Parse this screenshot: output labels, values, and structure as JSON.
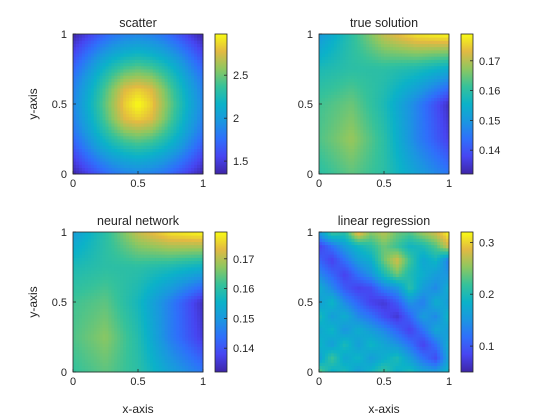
{
  "figure": {
    "background": "#ffffff",
    "colormap": "parula"
  },
  "chart_data": [
    {
      "type": "heatmap",
      "title": "scatter",
      "xlabel": "",
      "ylabel": "y-axis",
      "xlim": [
        0,
        1
      ],
      "ylim": [
        0,
        1
      ],
      "xticks": [
        "0",
        "0.5",
        "1"
      ],
      "yticks": [
        "0",
        "0.5",
        "1"
      ],
      "colorbar": {
        "min": 1.35,
        "max": 2.98,
        "ticks": [
          "1.5",
          "2",
          "2.5"
        ]
      },
      "grid_x": [
        0,
        0.1,
        0.2,
        0.3,
        0.4,
        0.5,
        0.6,
        0.7,
        0.8,
        0.9,
        1
      ],
      "grid_y": [
        0,
        0.1,
        0.2,
        0.3,
        0.4,
        0.5,
        0.6,
        0.7,
        0.8,
        0.9,
        1
      ],
      "values": [
        [
          1.35,
          1.5,
          1.65,
          1.78,
          1.85,
          1.88,
          1.85,
          1.78,
          1.65,
          1.5,
          1.35
        ],
        [
          1.5,
          1.68,
          1.85,
          1.98,
          2.06,
          2.1,
          2.06,
          1.98,
          1.85,
          1.68,
          1.5
        ],
        [
          1.65,
          1.85,
          2.05,
          2.2,
          2.3,
          2.35,
          2.3,
          2.2,
          2.05,
          1.85,
          1.65
        ],
        [
          1.78,
          1.98,
          2.2,
          2.4,
          2.55,
          2.6,
          2.55,
          2.4,
          2.2,
          1.98,
          1.78
        ],
        [
          1.85,
          2.06,
          2.3,
          2.55,
          2.78,
          2.85,
          2.78,
          2.55,
          2.3,
          2.06,
          1.85
        ],
        [
          1.88,
          2.1,
          2.35,
          2.6,
          2.85,
          2.98,
          2.85,
          2.6,
          2.35,
          2.1,
          1.88
        ],
        [
          1.85,
          2.06,
          2.3,
          2.55,
          2.78,
          2.85,
          2.78,
          2.55,
          2.3,
          2.06,
          1.85
        ],
        [
          1.78,
          1.98,
          2.2,
          2.4,
          2.55,
          2.6,
          2.55,
          2.4,
          2.2,
          1.98,
          1.78
        ],
        [
          1.65,
          1.85,
          2.05,
          2.2,
          2.3,
          2.35,
          2.3,
          2.2,
          2.05,
          1.85,
          1.65
        ],
        [
          1.5,
          1.68,
          1.85,
          1.98,
          2.06,
          2.1,
          2.06,
          1.98,
          1.85,
          1.68,
          1.5
        ],
        [
          1.35,
          1.5,
          1.65,
          1.78,
          1.85,
          1.88,
          1.85,
          1.78,
          1.65,
          1.5,
          1.35
        ]
      ]
    },
    {
      "type": "heatmap",
      "title": "true solution",
      "xlabel": "",
      "ylabel": "",
      "xlim": [
        0,
        1
      ],
      "ylim": [
        0,
        1
      ],
      "xticks": [
        "0",
        "0.5",
        "1"
      ],
      "yticks": [
        "0",
        "0.5",
        "1"
      ],
      "colorbar": {
        "min": 0.132,
        "max": 0.179,
        "ticks": [
          "0.14",
          "0.15",
          "0.16",
          "0.17"
        ]
      },
      "grid_x": [
        0,
        0.25,
        0.5,
        0.75,
        1
      ],
      "grid_y": [
        0,
        0.25,
        0.5,
        0.75,
        1
      ],
      "values": [
        [
          0.16,
          0.164,
          0.16,
          0.152,
          0.145
        ],
        [
          0.163,
          0.168,
          0.16,
          0.147,
          0.137
        ],
        [
          0.162,
          0.165,
          0.158,
          0.147,
          0.134
        ],
        [
          0.158,
          0.16,
          0.16,
          0.158,
          0.154
        ],
        [
          0.15,
          0.16,
          0.171,
          0.177,
          0.179
        ]
      ]
    },
    {
      "type": "heatmap",
      "title": "neural network",
      "xlabel": "x-axis",
      "ylabel": "y-axis",
      "xlim": [
        0,
        1
      ],
      "ylim": [
        0,
        1
      ],
      "xticks": [
        "0",
        "0.5",
        "1"
      ],
      "yticks": [
        "0",
        "0.5",
        "1"
      ],
      "colorbar": {
        "min": 0.132,
        "max": 0.179,
        "ticks": [
          "0.14",
          "0.15",
          "0.16",
          "0.17"
        ]
      },
      "grid_x": [
        0,
        0.25,
        0.5,
        0.75,
        1
      ],
      "grid_y": [
        0,
        0.25,
        0.5,
        0.75,
        1
      ],
      "values": [
        [
          0.161,
          0.164,
          0.16,
          0.152,
          0.145
        ],
        [
          0.163,
          0.167,
          0.159,
          0.146,
          0.136
        ],
        [
          0.162,
          0.164,
          0.157,
          0.146,
          0.134
        ],
        [
          0.158,
          0.16,
          0.16,
          0.158,
          0.155
        ],
        [
          0.151,
          0.16,
          0.171,
          0.177,
          0.179
        ]
      ]
    },
    {
      "type": "heatmap",
      "title": "linear regression",
      "xlabel": "x-axis",
      "ylabel": "",
      "xlim": [
        0,
        1
      ],
      "ylim": [
        0,
        1
      ],
      "xticks": [
        "0",
        "0.5",
        "1"
      ],
      "yticks": [
        "0",
        "0.5",
        "1"
      ],
      "colorbar": {
        "min": 0.05,
        "max": 0.32,
        "ticks": [
          "0.1",
          "0.2",
          "0.3"
        ]
      },
      "grid_x": [
        0,
        0.1,
        0.2,
        0.3,
        0.4,
        0.5,
        0.6,
        0.7,
        0.8,
        0.9,
        1
      ],
      "grid_y": [
        0,
        0.1,
        0.2,
        0.3,
        0.4,
        0.5,
        0.6,
        0.7,
        0.8,
        0.9,
        1
      ],
      "values": [
        [
          0.24,
          0.18,
          0.2,
          0.16,
          0.19,
          0.22,
          0.18,
          0.2,
          0.17,
          0.16,
          0.19
        ],
        [
          0.16,
          0.22,
          0.17,
          0.19,
          0.16,
          0.18,
          0.2,
          0.16,
          0.12,
          0.09,
          0.17
        ],
        [
          0.19,
          0.16,
          0.2,
          0.16,
          0.19,
          0.17,
          0.15,
          0.12,
          0.08,
          0.12,
          0.18
        ],
        [
          0.17,
          0.19,
          0.15,
          0.18,
          0.16,
          0.14,
          0.11,
          0.08,
          0.12,
          0.17,
          0.16
        ],
        [
          0.2,
          0.16,
          0.18,
          0.14,
          0.12,
          0.09,
          0.07,
          0.11,
          0.16,
          0.14,
          0.19
        ],
        [
          0.16,
          0.19,
          0.14,
          0.11,
          0.08,
          0.07,
          0.1,
          0.15,
          0.13,
          0.18,
          0.16
        ],
        [
          0.18,
          0.14,
          0.1,
          0.08,
          0.09,
          0.13,
          0.15,
          0.21,
          0.16,
          0.14,
          0.18
        ],
        [
          0.14,
          0.11,
          0.08,
          0.12,
          0.15,
          0.2,
          0.24,
          0.2,
          0.18,
          0.16,
          0.15
        ],
        [
          0.11,
          0.08,
          0.12,
          0.16,
          0.18,
          0.24,
          0.28,
          0.22,
          0.17,
          0.19,
          0.13
        ],
        [
          0.08,
          0.12,
          0.16,
          0.19,
          0.21,
          0.24,
          0.22,
          0.19,
          0.2,
          0.23,
          0.28
        ],
        [
          0.16,
          0.22,
          0.21,
          0.3,
          0.25,
          0.27,
          0.24,
          0.23,
          0.26,
          0.28,
          0.32
        ]
      ]
    }
  ]
}
